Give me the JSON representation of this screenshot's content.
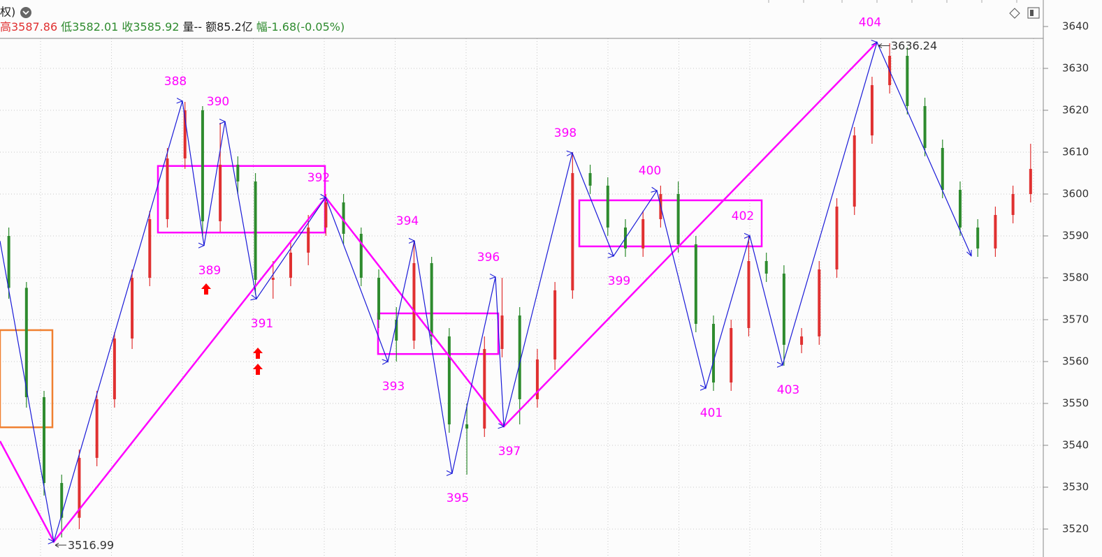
{
  "header": {
    "prefix": "权)",
    "quote": [
      {
        "text": "高3587.86",
        "color": "#e03030"
      },
      {
        "text": "低3582.01",
        "color": "#2e8b2e"
      },
      {
        "text": "收3585.92",
        "color": "#2e8b2e"
      },
      {
        "text": "量--",
        "color": "#222222"
      },
      {
        "text": "额85.2亿",
        "color": "#222222"
      },
      {
        "text": "幅-1.68(-0.05%)",
        "color": "#2e8b2e"
      }
    ]
  },
  "chart_data": {
    "type": "candlestick",
    "ylim": [
      3513.33,
      3646.33
    ],
    "yticks": [
      3520,
      3530,
      3540,
      3550,
      3560,
      3570,
      3580,
      3590,
      3600,
      3610,
      3620,
      3630,
      3640
    ],
    "xlim": [
      0,
      299
    ],
    "grid": true,
    "up_color": "#e03030",
    "down_color": "#2e8b2e",
    "candles": [
      [
        3590,
        3592,
        3575,
        3577.6
      ],
      [
        3577.6,
        3579,
        3549,
        3551.5
      ],
      [
        3551.5,
        3553,
        3528,
        3531
      ],
      [
        3531,
        3533,
        3518,
        3522.7
      ],
      [
        3522.7,
        3539,
        3520,
        3537
      ],
      [
        3537,
        3553,
        3535,
        3551
      ],
      [
        3551,
        3567,
        3549,
        3565.5
      ],
      [
        3565.5,
        3582,
        3563,
        3580
      ],
      [
        3580,
        3596,
        3578,
        3594
      ],
      [
        3594,
        3611,
        3592,
        3608.5
      ],
      [
        3608.5,
        3622,
        3606,
        3620
      ],
      [
        3620,
        3621,
        3590,
        3593.5
      ],
      [
        3593.5,
        3617,
        3591,
        3607
      ],
      [
        3607,
        3609,
        3600,
        3603
      ],
      [
        3603,
        3605,
        3576,
        3579.5
      ],
      [
        3579.5,
        3584,
        3575,
        3580
      ],
      [
        3580,
        3589,
        3578,
        3586
      ],
      [
        3586,
        3595,
        3583,
        3592
      ],
      [
        3592,
        3600,
        3590,
        3598
      ],
      [
        3598,
        3600,
        3588,
        3590.5
      ],
      [
        3590.5,
        3592,
        3578,
        3580
      ],
      [
        3580,
        3582,
        3568,
        3570
      ],
      [
        3570,
        3573,
        3560,
        3565
      ],
      [
        3565,
        3589,
        3563,
        3583.5
      ],
      [
        3583.5,
        3585,
        3564,
        3566
      ],
      [
        3566,
        3568,
        3543,
        3545
      ],
      [
        3545,
        3550,
        3533,
        3544
      ],
      [
        3544,
        3566,
        3542,
        3563
      ],
      [
        3563,
        3580,
        3561,
        3571
      ],
      [
        3571,
        3573,
        3545,
        3551
      ],
      [
        3551,
        3563,
        3549,
        3560.5
      ],
      [
        3560.5,
        3579,
        3558,
        3577
      ],
      [
        3577,
        3610,
        3575,
        3605
      ],
      [
        3605,
        3607,
        3600,
        3602
      ],
      [
        3602,
        3604,
        3590,
        3592
      ],
      [
        3592,
        3594,
        3585,
        3587
      ],
      [
        3587,
        3596,
        3585,
        3594
      ],
      [
        3594,
        3602,
        3592,
        3600
      ],
      [
        3600,
        3603,
        3586,
        3588
      ],
      [
        3588,
        3590,
        3567,
        3569
      ],
      [
        3569,
        3571,
        3553,
        3555
      ],
      [
        3555,
        3570,
        3553,
        3568
      ],
      [
        3568,
        3590,
        3566,
        3584
      ],
      [
        3584,
        3586,
        3579,
        3581
      ],
      [
        3581,
        3583,
        3559,
        3564
      ],
      [
        3564,
        3568,
        3562,
        3566
      ],
      [
        3566,
        3584,
        3564,
        3582
      ],
      [
        3582,
        3599,
        3580,
        3597
      ],
      [
        3597,
        3616,
        3595,
        3614
      ],
      [
        3614,
        3628,
        3612,
        3626
      ],
      [
        3626,
        3636,
        3624,
        3633
      ],
      [
        3633,
        3635,
        3619,
        3621
      ],
      [
        3621,
        3623,
        3609,
        3611
      ],
      [
        3611,
        3613,
        3599,
        3601
      ],
      [
        3601,
        3603,
        3590,
        3592
      ],
      [
        3592,
        3594,
        3585,
        3587
      ],
      [
        3587,
        3597,
        3585,
        3595
      ],
      [
        3595,
        3602,
        3593,
        3600
      ],
      [
        3600,
        3612,
        3598,
        3606
      ]
    ],
    "zigzag": {
      "color": "#1a1ad8",
      "x": [
        0,
        15.4,
        52.2,
        58.4,
        64.4,
        73.4,
        93.2,
        111,
        118.6,
        129.4,
        141.8,
        144.2,
        163.8,
        175.6,
        188,
        202,
        214.6,
        224,
        251,
        278
      ],
      "values": [
        3588.8,
        3516.99,
        3622.2,
        3587.7,
        3617.3,
        3575,
        3599.2,
        3560,
        3588.8,
        3533.3,
        3580.2,
        3544.5,
        3609.8,
        3585.2,
        3600.8,
        3553.7,
        3590,
        3559.2,
        3636.24,
        3585.2
      ],
      "labels": [
        null,
        null,
        "388",
        "389",
        "390",
        "391",
        "392",
        "393",
        "394",
        "395",
        "396",
        "397",
        "398",
        "399",
        "400",
        "401",
        "402",
        "403",
        "404",
        null
      ]
    },
    "trend": {
      "color": "#ff00ff",
      "x": [
        0,
        15.4,
        93.2,
        144.2,
        251
      ],
      "values": [
        3541,
        3516.99,
        3599.2,
        3544.5,
        3636.24
      ]
    },
    "boxes": [
      {
        "x": [
          0,
          15
        ],
        "range": [
          3544.3,
          3567.5
        ],
        "color": "#f08030"
      },
      {
        "x": [
          45.2,
          93
        ],
        "range": [
          3590.8,
          3606.7
        ],
        "color": "#ff00ff"
      },
      {
        "x": [
          108.2,
          142.6
        ],
        "range": [
          3561.8,
          3571.5
        ],
        "color": "#ff00ff"
      },
      {
        "x": [
          165.8,
          218
        ],
        "range": [
          3587.5,
          3598.5
        ],
        "color": "#ff00ff"
      }
    ]
  }
}
